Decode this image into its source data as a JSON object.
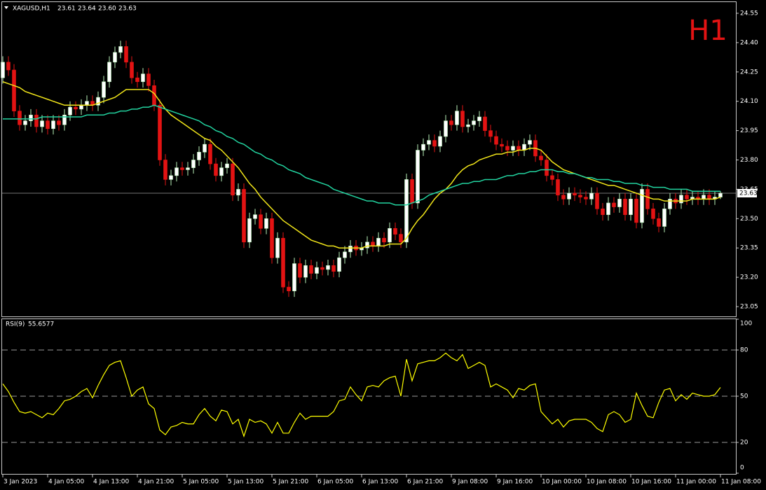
{
  "chart_data": [
    {
      "type": "candlestick",
      "symbol": "XAGUSD,H1",
      "header_ohlc": [
        "23.61",
        "23.64",
        "23.60",
        "23.63"
      ],
      "timeframe_label": "H1",
      "categories": [
        "3 Jan 2023",
        null,
        null,
        null,
        null,
        null,
        null,
        null,
        "4 Jan 05:00",
        null,
        null,
        null,
        null,
        null,
        null,
        null,
        "4 Jan 13:00",
        null,
        null,
        null,
        null,
        null,
        null,
        null,
        "4 Jan 21:00",
        null,
        null,
        null,
        null,
        null,
        null,
        null,
        "5 Jan 05:00",
        null,
        null,
        null,
        null,
        null,
        null,
        null,
        "5 Jan 13:00",
        null,
        null,
        null,
        null,
        null,
        null,
        null,
        "5 Jan 21:00",
        null,
        null,
        null,
        null,
        null,
        null,
        null,
        "6 Jan 05:00",
        null,
        null,
        null,
        null,
        null,
        null,
        null,
        "6 Jan 13:00",
        null,
        null,
        null,
        null,
        null,
        null,
        null,
        "6 Jan 21:00",
        null,
        null,
        null,
        null,
        null,
        null,
        null,
        "9 Jan 08:00",
        null,
        null,
        null,
        null,
        null,
        null,
        null,
        "9 Jan 16:00",
        null,
        null,
        null,
        null,
        null,
        null,
        null,
        "10 Jan 00:00",
        null,
        null,
        null,
        null,
        null,
        null,
        null,
        "10 Jan 08:00",
        null,
        null,
        null,
        null,
        null,
        null,
        null,
        "10 Jan 16:00",
        null,
        null,
        null,
        null,
        null,
        null,
        null,
        "11 Jan 00:00",
        null,
        null,
        null,
        null,
        null,
        null,
        null,
        "11 Jan 08:00"
      ],
      "open": [
        24.22,
        24.3,
        24.26,
        24.05,
        23.98,
        24.0,
        24.03,
        23.97,
        24.0,
        23.96,
        24.0,
        23.98,
        24.03,
        24.07,
        24.06,
        24.08,
        24.1,
        24.08,
        24.12,
        24.2,
        24.3,
        24.35,
        24.38,
        24.3,
        24.22,
        24.2,
        24.24,
        24.18,
        24.08,
        23.8,
        23.7,
        23.72,
        23.76,
        23.75,
        23.76,
        23.8,
        23.84,
        23.88,
        23.78,
        23.72,
        23.76,
        23.78,
        23.62,
        23.65,
        23.38,
        23.5,
        23.52,
        23.45,
        23.5,
        23.3,
        23.4,
        23.15,
        23.13,
        23.27,
        23.2,
        23.26,
        23.22,
        23.25,
        23.24,
        23.26,
        23.23,
        23.3,
        23.33,
        23.36,
        23.34,
        23.35,
        23.38,
        23.36,
        23.4,
        23.38,
        23.45,
        23.42,
        23.38,
        23.7,
        23.58,
        23.85,
        23.88,
        23.9,
        23.87,
        23.92,
        24.0,
        23.98,
        24.05,
        23.97,
        23.98,
        24.0,
        24.02,
        23.95,
        23.92,
        23.88,
        23.87,
        23.85,
        23.87,
        23.85,
        23.88,
        23.9,
        23.82,
        23.8,
        23.72,
        23.7,
        23.62,
        23.6,
        23.63,
        23.62,
        23.61,
        23.6,
        23.63,
        23.55,
        23.52,
        23.58,
        23.56,
        23.6,
        23.52,
        23.6,
        23.48,
        23.65,
        23.55,
        23.5,
        23.46,
        23.55,
        23.6,
        23.58,
        23.62,
        23.6,
        23.61,
        23.6,
        23.62,
        23.6,
        23.61
      ],
      "high": [
        24.33,
        24.33,
        24.29,
        24.08,
        24.03,
        24.06,
        24.06,
        24.03,
        24.03,
        24.03,
        24.03,
        24.06,
        24.1,
        24.1,
        24.11,
        24.13,
        24.13,
        24.15,
        24.23,
        24.33,
        24.38,
        24.41,
        24.41,
        24.33,
        24.25,
        24.27,
        24.27,
        24.21,
        24.11,
        23.83,
        23.75,
        23.79,
        23.79,
        23.79,
        23.83,
        23.87,
        23.91,
        23.91,
        23.81,
        23.79,
        23.81,
        23.81,
        23.68,
        23.68,
        23.53,
        23.55,
        23.55,
        23.53,
        23.53,
        23.43,
        23.43,
        23.18,
        23.3,
        23.3,
        23.29,
        23.29,
        23.28,
        23.28,
        23.29,
        23.29,
        23.33,
        23.36,
        23.39,
        23.39,
        23.38,
        23.41,
        23.41,
        23.43,
        23.43,
        23.48,
        23.48,
        23.45,
        23.73,
        23.73,
        23.88,
        23.91,
        23.93,
        23.93,
        23.95,
        24.03,
        24.03,
        24.08,
        24.08,
        24.01,
        24.03,
        24.05,
        24.05,
        23.98,
        23.95,
        23.91,
        23.9,
        23.9,
        23.9,
        23.91,
        23.93,
        23.93,
        23.85,
        23.83,
        23.75,
        23.73,
        23.65,
        23.66,
        23.66,
        23.65,
        23.64,
        23.66,
        23.66,
        23.58,
        23.61,
        23.61,
        23.63,
        23.63,
        23.63,
        23.63,
        23.68,
        23.68,
        23.58,
        23.53,
        23.58,
        23.63,
        23.63,
        23.65,
        23.65,
        23.64,
        23.64,
        23.65,
        23.65,
        23.64,
        23.64
      ],
      "low": [
        24.19,
        24.23,
        24.02,
        23.95,
        23.95,
        23.97,
        23.94,
        23.94,
        23.93,
        23.93,
        23.95,
        23.95,
        24.0,
        24.03,
        24.03,
        24.05,
        24.05,
        24.05,
        24.09,
        24.17,
        24.27,
        24.32,
        24.27,
        24.19,
        24.17,
        24.17,
        24.15,
        24.05,
        23.77,
        23.67,
        23.67,
        23.69,
        23.72,
        23.72,
        23.73,
        23.77,
        23.81,
        23.75,
        23.69,
        23.69,
        23.73,
        23.59,
        23.59,
        23.35,
        23.35,
        23.47,
        23.42,
        23.42,
        23.27,
        23.27,
        23.12,
        23.1,
        23.1,
        23.17,
        23.17,
        23.19,
        23.19,
        23.21,
        23.21,
        23.2,
        23.2,
        23.27,
        23.3,
        23.31,
        23.31,
        23.32,
        23.33,
        23.33,
        23.35,
        23.35,
        23.39,
        23.35,
        23.35,
        23.55,
        23.55,
        23.82,
        23.85,
        23.84,
        23.84,
        23.89,
        23.95,
        23.95,
        23.94,
        23.94,
        23.95,
        23.97,
        23.92,
        23.89,
        23.85,
        23.84,
        23.82,
        23.82,
        23.82,
        23.82,
        23.85,
        23.79,
        23.77,
        23.69,
        23.67,
        23.59,
        23.57,
        23.57,
        23.59,
        23.58,
        23.57,
        23.57,
        23.52,
        23.49,
        23.49,
        23.53,
        23.53,
        23.49,
        23.49,
        23.45,
        23.45,
        23.52,
        23.47,
        23.43,
        23.43,
        23.52,
        23.55,
        23.55,
        23.57,
        23.57,
        23.57,
        23.57,
        23.57,
        23.57,
        23.6
      ],
      "close": [
        24.3,
        24.26,
        24.05,
        23.98,
        24.0,
        24.03,
        23.97,
        24.0,
        23.96,
        24.0,
        23.98,
        24.03,
        24.07,
        24.06,
        24.08,
        24.1,
        24.08,
        24.12,
        24.2,
        24.3,
        24.35,
        24.38,
        24.3,
        24.22,
        24.2,
        24.24,
        24.18,
        24.08,
        23.8,
        23.7,
        23.72,
        23.76,
        23.75,
        23.76,
        23.8,
        23.84,
        23.88,
        23.78,
        23.72,
        23.76,
        23.78,
        23.62,
        23.65,
        23.38,
        23.5,
        23.52,
        23.45,
        23.5,
        23.3,
        23.4,
        23.15,
        23.13,
        23.27,
        23.2,
        23.26,
        23.22,
        23.25,
        23.24,
        23.26,
        23.23,
        23.3,
        23.33,
        23.36,
        23.34,
        23.35,
        23.38,
        23.36,
        23.4,
        23.38,
        23.45,
        23.42,
        23.38,
        23.7,
        23.58,
        23.85,
        23.88,
        23.9,
        23.87,
        23.92,
        24.0,
        23.98,
        24.05,
        23.97,
        23.98,
        24.0,
        24.02,
        23.95,
        23.92,
        23.88,
        23.87,
        23.85,
        23.87,
        23.85,
        23.88,
        23.9,
        23.82,
        23.8,
        23.72,
        23.7,
        23.62,
        23.6,
        23.63,
        23.62,
        23.61,
        23.6,
        23.63,
        23.55,
        23.52,
        23.58,
        23.56,
        23.6,
        23.52,
        23.6,
        23.48,
        23.65,
        23.55,
        23.5,
        23.46,
        23.55,
        23.6,
        23.58,
        23.62,
        23.6,
        23.61,
        23.6,
        23.62,
        23.6,
        23.61,
        23.63
      ],
      "bull_color": "#ffffff",
      "bull_wick_color": "#b8f0b8",
      "bear_color": "#e31313",
      "last_price_line_color": "#9a9a9a",
      "moving_averages": [
        {
          "color": "#f2e61a",
          "values": [
            24.2,
            24.19,
            24.18,
            24.17,
            24.15,
            24.14,
            24.13,
            24.12,
            24.11,
            24.1,
            24.09,
            24.08,
            24.08,
            24.08,
            24.08,
            24.08,
            24.08,
            24.09,
            24.1,
            24.11,
            24.12,
            24.14,
            24.16,
            24.16,
            24.16,
            24.16,
            24.16,
            24.14,
            24.1,
            24.06,
            24.03,
            24.01,
            23.99,
            23.97,
            23.95,
            23.93,
            23.91,
            23.9,
            23.87,
            23.85,
            23.82,
            23.79,
            23.76,
            23.72,
            23.68,
            23.65,
            23.61,
            23.58,
            23.55,
            23.52,
            23.49,
            23.47,
            23.45,
            23.43,
            23.41,
            23.39,
            23.38,
            23.37,
            23.36,
            23.36,
            23.35,
            23.35,
            23.35,
            23.35,
            23.35,
            23.36,
            23.36,
            23.36,
            23.36,
            23.37,
            23.37,
            23.37,
            23.4,
            23.45,
            23.49,
            23.52,
            23.56,
            23.6,
            23.63,
            23.65,
            23.68,
            23.72,
            23.75,
            23.77,
            23.78,
            23.8,
            23.81,
            23.82,
            23.83,
            23.83,
            23.84,
            23.84,
            23.85,
            23.85,
            23.86,
            23.86,
            23.85,
            23.82,
            23.79,
            23.77,
            23.75,
            23.74,
            23.73,
            23.72,
            23.71,
            23.7,
            23.69,
            23.68,
            23.67,
            23.67,
            23.66,
            23.65,
            23.64,
            23.63,
            23.62,
            23.61,
            23.6,
            23.6,
            23.59,
            23.59,
            23.59,
            23.59,
            23.59,
            23.6,
            23.6,
            23.6,
            23.6,
            23.6,
            23.61
          ]
        },
        {
          "color": "#22d4a0",
          "values": [
            24.01,
            24.01,
            24.01,
            24.01,
            24.01,
            24.01,
            24.01,
            24.02,
            24.02,
            24.02,
            24.02,
            24.02,
            24.02,
            24.02,
            24.02,
            24.03,
            24.03,
            24.03,
            24.03,
            24.04,
            24.04,
            24.05,
            24.05,
            24.06,
            24.06,
            24.07,
            24.07,
            24.08,
            24.07,
            24.06,
            24.05,
            24.04,
            24.03,
            24.02,
            24.01,
            24.0,
            23.98,
            23.97,
            23.95,
            23.94,
            23.92,
            23.91,
            23.89,
            23.88,
            23.86,
            23.84,
            23.83,
            23.81,
            23.8,
            23.78,
            23.77,
            23.75,
            23.74,
            23.73,
            23.71,
            23.7,
            23.69,
            23.68,
            23.67,
            23.65,
            23.64,
            23.63,
            23.62,
            23.61,
            23.6,
            23.59,
            23.59,
            23.58,
            23.58,
            23.58,
            23.57,
            23.57,
            23.57,
            23.58,
            23.59,
            23.6,
            23.62,
            23.63,
            23.64,
            23.65,
            23.66,
            23.67,
            23.68,
            23.68,
            23.69,
            23.69,
            23.7,
            23.7,
            23.7,
            23.71,
            23.72,
            23.72,
            23.73,
            23.73,
            23.74,
            23.74,
            23.75,
            23.75,
            23.75,
            23.74,
            23.74,
            23.73,
            23.73,
            23.72,
            23.71,
            23.71,
            23.7,
            23.7,
            23.7,
            23.69,
            23.69,
            23.68,
            23.68,
            23.68,
            23.67,
            23.67,
            23.66,
            23.66,
            23.66,
            23.65,
            23.65,
            23.65,
            23.65,
            23.64,
            23.64,
            23.64,
            23.64,
            23.64,
            23.64
          ]
        }
      ],
      "ylim": [
        23.0,
        24.6
      ],
      "yticks": [
        {
          "value": 23.05,
          "label": "23.05"
        },
        {
          "value": 23.2,
          "label": "23.20"
        },
        23.35,
        {
          "value": 23.5,
          "label": "23.50"
        },
        23.65,
        {
          "value": 23.8,
          "label": "23.80"
        },
        23.95,
        {
          "value": 24.1,
          "label": "24.10"
        },
        24.25,
        {
          "value": 24.4,
          "label": "24.40"
        },
        24.55
      ]
    },
    {
      "type": "line",
      "title": "RSI(9)",
      "color": "#ffff00",
      "values": [
        58,
        53,
        46,
        40,
        39,
        40,
        38,
        36,
        39,
        38,
        42,
        47,
        48,
        50,
        53,
        55,
        49,
        57,
        64,
        70,
        72,
        73,
        62,
        50,
        54,
        56,
        45,
        42,
        28,
        25,
        30,
        31,
        33,
        32,
        32,
        38,
        42,
        37,
        34,
        41,
        40,
        32,
        35,
        24,
        35,
        33,
        34,
        32,
        26,
        33,
        26,
        26,
        33,
        39,
        35,
        37,
        37,
        37,
        37,
        40,
        47,
        48,
        56,
        51,
        47,
        56,
        57,
        56,
        60,
        62,
        63,
        50,
        74,
        60,
        71,
        72,
        73,
        73,
        75,
        78,
        75,
        73,
        77,
        68,
        70,
        72,
        70,
        56,
        58,
        56,
        54,
        49,
        55,
        54,
        57,
        58,
        40,
        36,
        32,
        35,
        30,
        34,
        35,
        35,
        35,
        33,
        29,
        27,
        38,
        40,
        38,
        33,
        35,
        52,
        44,
        37,
        36,
        46,
        54,
        55,
        47,
        51,
        48,
        52,
        51,
        50,
        50,
        51,
        55.6577
      ],
      "ylim": [
        0,
        100
      ],
      "yticks": [
        0,
        20,
        50,
        80,
        100
      ]
    }
  ]
}
